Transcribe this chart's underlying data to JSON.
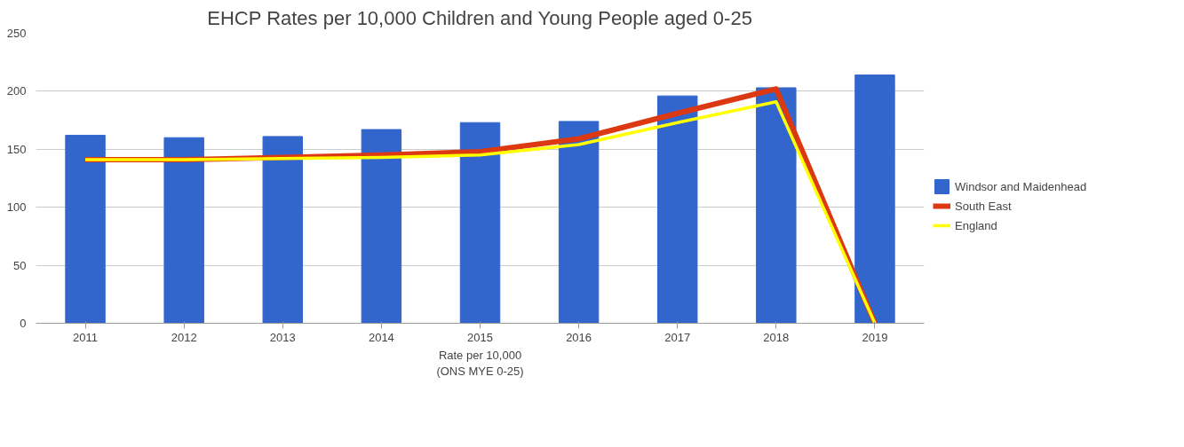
{
  "chart_data": {
    "type": "bar",
    "title": "EHCP Rates per 10,000 Children and Young People aged 0-25",
    "xlabel": "Rate per 10,000\n(ONS MYE 0-25)",
    "categories": [
      "2011",
      "2012",
      "2013",
      "2014",
      "2015",
      "2016",
      "2017",
      "2018",
      "2019"
    ],
    "series": [
      {
        "name": "Windsor and Maidenhead",
        "color": "#3366cc",
        "values": [
          162,
          160,
          161,
          167,
          173,
          174,
          196,
          203,
          214
        ]
      },
      {
        "name": "South East",
        "type": "line",
        "color": "#dc3912",
        "values": [
          141,
          141,
          143,
          145,
          148,
          159,
          181,
          202,
          0
        ]
      },
      {
        "name": "England",
        "type": "line",
        "color": "#ffff00",
        "values": [
          141,
          141,
          142,
          143,
          145,
          154,
          173,
          191,
          0
        ]
      }
    ],
    "ylim": [
      0,
      250
    ],
    "yticks": [
      0,
      50,
      100,
      150,
      200,
      250
    ],
    "grid": "y",
    "legend": "right"
  }
}
